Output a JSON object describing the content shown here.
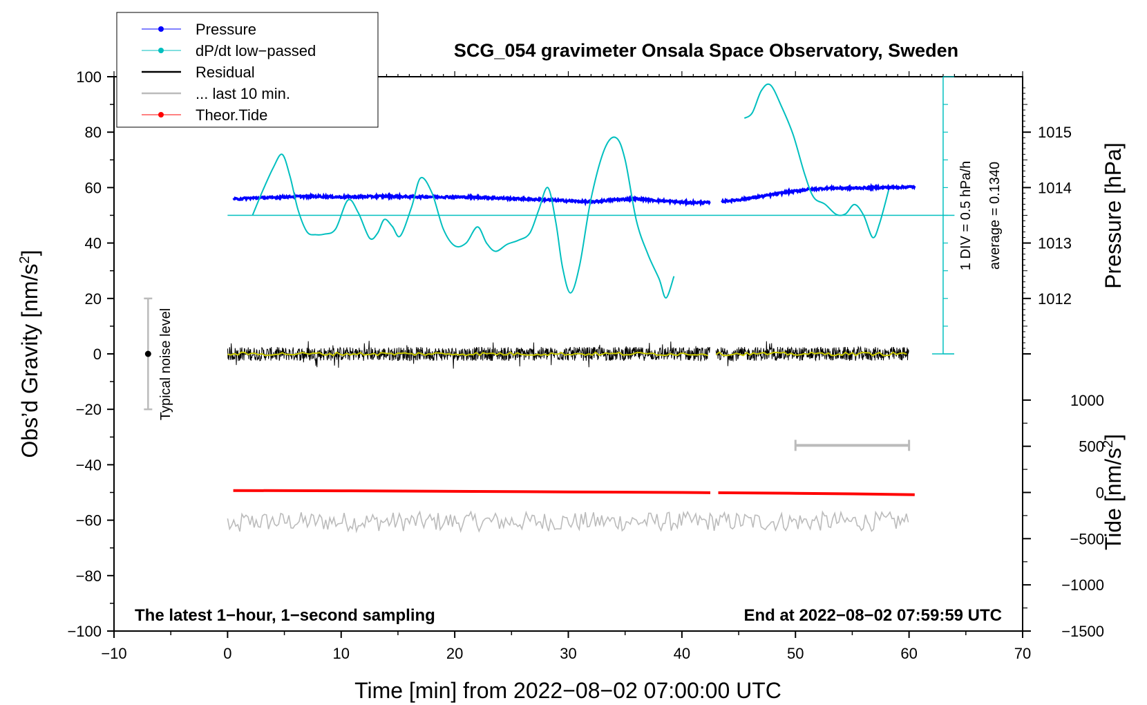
{
  "chart_data": {
    "type": "line",
    "title": "SCG_054 gravimeter Onsala Space Observatory, Sweden",
    "xlabel": "Time [min] from 2022−08−02 07:00:00 UTC",
    "ylabel": "Obs’d Gravity [nm/s²]",
    "ylabel_main": "Obs’d Gravity [nm/s",
    "ylabel_sup": "2",
    "ylabel_end": "]",
    "y2label_pressure": "Pressure [hPa]",
    "y2label_tide": "Tide [nm/s",
    "y2label_tide_sup": "2",
    "y2label_tide_end": "]",
    "xlim": [
      -10,
      70
    ],
    "ylim": [
      -100,
      100
    ],
    "x_ticks": [
      -10,
      0,
      10,
      20,
      30,
      40,
      50,
      60,
      70
    ],
    "x_tick_labels": [
      "−10",
      "0",
      "10",
      "20",
      "30",
      "40",
      "50",
      "60",
      "70"
    ],
    "y_ticks": [
      -100,
      -80,
      -60,
      -40,
      -20,
      0,
      20,
      40,
      60,
      80,
      100
    ],
    "y_tick_labels": [
      "−100",
      "−80",
      "−60",
      "−40",
      "−20",
      "0",
      "20",
      "40",
      "60",
      "80",
      "100"
    ],
    "pressure_axis": {
      "ticks": [
        1012,
        1013,
        1014,
        1015
      ],
      "tick_labels": [
        "1012",
        "1013",
        "1014",
        "1015"
      ],
      "gravity_at_1012": 20,
      "gravity_per_hpa": 20
    },
    "tide_axis": {
      "ticks": [
        -1500,
        -1000,
        -500,
        0,
        500,
        1000
      ],
      "tick_labels": [
        "−1500",
        "−1000",
        "−500",
        "0",
        "500",
        "1000"
      ],
      "gravity_at_0": -50,
      "gravity_per_unit": 0.0333333
    },
    "annotations": {
      "bottom_left": "The latest 1−hour, 1−second sampling",
      "bottom_right": "End at 2022−08−02 07:59:59 UTC",
      "noise_label": "Typical noise level",
      "div_label": "1 DIV = 0.5 hPa/h",
      "average_label": "average = 0.1340"
    },
    "noise_bar": {
      "x": -7,
      "center": 0,
      "half_range": 20
    },
    "last10_bar": {
      "x_start": 50,
      "x_end": 60,
      "y": -33
    },
    "dpdt_scale": {
      "x": 63,
      "y_min": 0,
      "y_max": 100,
      "divisions": 10,
      "baseline_y": 50,
      "baseline_x": [
        0,
        64
      ]
    },
    "legend": [
      {
        "label": "Pressure",
        "color": "#0000ff",
        "marker": true
      },
      {
        "label": "dP/dt low−passed",
        "color": "#00bfbf",
        "marker": true
      },
      {
        "label": "Residual",
        "color": "#000000",
        "marker": false
      },
      {
        "label": "... last 10 min.",
        "color": "#bbbbbb",
        "marker": false
      },
      {
        "label": "Theor.Tide",
        "color": "#ff0000",
        "marker": true
      }
    ],
    "series": [
      {
        "name": "Pressure",
        "color": "#0000ff",
        "segments": [
          {
            "x": [
              0.5,
              2,
              4,
              6,
              8,
              10,
              12,
              14,
              16,
              18,
              20,
              22,
              24,
              26,
              28,
              30,
              32,
              34,
              36,
              38,
              40,
              41,
              42.5
            ],
            "y": [
              55.8,
              56.2,
              56.4,
              56.8,
              56.8,
              56.6,
              56.7,
              56.9,
              56.7,
              56.7,
              56.6,
              56.5,
              56.2,
              55.9,
              55.6,
              55.2,
              54.8,
              55.6,
              55.9,
              55.3,
              54.7,
              54.6,
              54.6
            ]
          },
          {
            "x": [
              43.5,
              45,
              47,
              49,
              51,
              53,
              55,
              57,
              59,
              60.5
            ],
            "y": [
              55.0,
              55.6,
              56.8,
              58.2,
              59.3,
              59.8,
              59.8,
              60.0,
              60.1,
              60.3
            ]
          }
        ]
      },
      {
        "name": "dP/dt low−passed",
        "color": "#00bfbf",
        "segments": [
          {
            "x": [
              2.2,
              3,
              4,
              4.8,
              5.5,
              6.2,
              7,
              7.8,
              8.5,
              9.5,
              10.6,
              11.5,
              12.5,
              13.2,
              13.8,
              14.5,
              15.2,
              16.2,
              17,
              18,
              19,
              20,
              21,
              22,
              22.8,
              23.6,
              24.6,
              25.6,
              26.6,
              27.4,
              28.2,
              28.9,
              29.5,
              30.2,
              31,
              32,
              33.2,
              34.2,
              35,
              36,
              37,
              38,
              38.6,
              39.3
            ],
            "y": [
              50,
              58,
              67,
              72,
              64,
              52,
              44,
              43,
              43.2,
              45,
              55.5,
              51,
              41.8,
              43.5,
              48.5,
              46,
              42.5,
              53,
              63.5,
              58,
              45,
              39,
              40,
              45.8,
              40,
              37,
              39.5,
              41,
              43.5,
              52,
              60,
              47.5,
              31,
              22,
              32,
              56,
              74,
              78,
              70,
              48,
              36,
              27,
              20.2,
              28
            ]
          },
          {
            "x": [
              45.5,
              46.2,
              47,
              47.8,
              48.8,
              49.8,
              50.8,
              51.6,
              52.6,
              53.6,
              54.4,
              55.2,
              56,
              56.8,
              57.4,
              58.2
            ],
            "y": [
              85,
              87,
              95,
              97,
              89,
              79,
              65,
              56.5,
              54,
              50.3,
              50.5,
              53.9,
              50,
              42,
              47,
              59
            ]
          }
        ]
      },
      {
        "name": "Residual",
        "color": "#000000",
        "segments": [
          {
            "x": [
              0,
              42.5
            ],
            "amp": 2.5
          },
          {
            "x": [
              43,
              60
            ],
            "amp": 2.5
          }
        ]
      },
      {
        "name": "Residual (smoothed)",
        "color": "#c8c800",
        "segments": [
          {
            "x": [
              0,
              42.5
            ],
            "amp": 0.6
          },
          {
            "x": [
              43,
              60
            ],
            "amp": 0.6
          }
        ]
      },
      {
        "name": "... last 10 min.",
        "color": "#bbbbbb",
        "segments": [
          {
            "x": [
              0,
              60
            ],
            "y_center": -60.5,
            "amp": 3.5
          }
        ]
      },
      {
        "name": "Theor.Tide",
        "color": "#ff0000",
        "segments": [
          {
            "x": [
              0.5,
              10,
              20,
              30,
              40,
              42.5
            ],
            "y": [
              -49.3,
              -49.4,
              -49.6,
              -49.8,
              -50.0,
              -50.1
            ]
          },
          {
            "x": [
              43.2,
              50,
              55,
              60.5
            ],
            "y": [
              -50.1,
              -50.3,
              -50.5,
              -50.8
            ]
          }
        ]
      }
    ]
  }
}
